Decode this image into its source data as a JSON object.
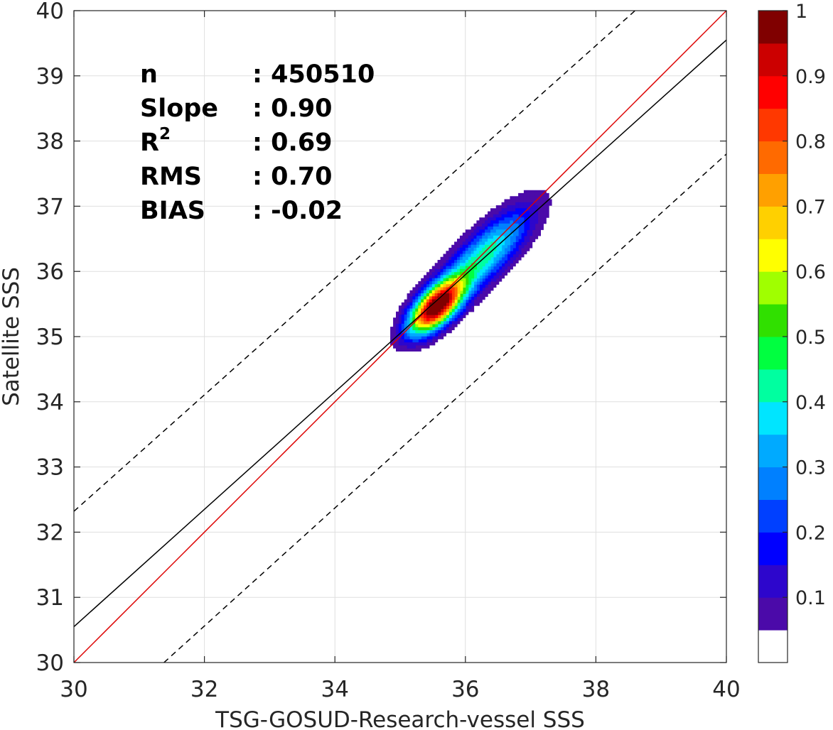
{
  "chart_data": {
    "type": "heatmap",
    "subtype": "density contour scatter (filled contours)",
    "xlabel": "TSG-GOSUD-Research-vessel SSS",
    "ylabel": "Satellite SSS",
    "xlim": [
      30,
      40
    ],
    "ylim": [
      30,
      40
    ],
    "xticks": [
      "30",
      "32",
      "34",
      "36",
      "38",
      "40"
    ],
    "yticks": [
      "30",
      "31",
      "32",
      "33",
      "34",
      "35",
      "36",
      "37",
      "38",
      "39",
      "40"
    ],
    "grid": true,
    "stats": [
      {
        "label": "n",
        "value": ": 450510"
      },
      {
        "label": "Slope",
        "value": ": 0.90"
      },
      {
        "label": "R",
        "superscript": "2",
        "value": ": 0.69"
      },
      {
        "label": "RMS",
        "value": ": 0.70"
      },
      {
        "label": "BIAS",
        "value": ": -0.02"
      }
    ],
    "lines": [
      {
        "kind": "one-to-one",
        "color": "#dd0000",
        "style": "solid",
        "points": [
          [
            30,
            30
          ],
          [
            40,
            40
          ]
        ]
      },
      {
        "kind": "regression",
        "color": "#000000",
        "style": "solid",
        "points": [
          [
            30,
            30.55
          ],
          [
            40,
            39.55
          ]
        ]
      },
      {
        "kind": "upper-bound",
        "color": "#000000",
        "style": "dashed",
        "points": [
          [
            30,
            32.32
          ],
          [
            38.6,
            40
          ]
        ]
      },
      {
        "kind": "lower-bound",
        "color": "#000000",
        "style": "dashed",
        "points": [
          [
            31.38,
            30
          ],
          [
            40,
            37.8
          ]
        ]
      }
    ],
    "density_peak": {
      "x": 35.55,
      "y": 35.45
    },
    "density_levels": [
      0.05,
      0.1,
      0.15,
      0.2,
      0.25,
      0.3,
      0.35,
      0.4,
      0.45,
      0.5,
      0.55,
      0.6,
      0.65,
      0.7,
      0.75,
      0.8,
      0.85,
      0.9,
      0.95
    ],
    "colorbar": {
      "range": [
        0,
        1
      ],
      "ticks": [
        "0.1",
        "0.2",
        "0.3",
        "0.4",
        "0.5",
        "0.6",
        "0.7",
        "0.8",
        "0.9",
        "1"
      ],
      "colors": [
        "#ffffff",
        "#4b0aa9",
        "#2d06cc",
        "#0000ff",
        "#0040ff",
        "#0080ff",
        "#00aaff",
        "#00e5ff",
        "#00ffa0",
        "#00ff40",
        "#30e000",
        "#a0ff00",
        "#ffff00",
        "#ffd000",
        "#ffa000",
        "#ff6a00",
        "#ff3800",
        "#ff0000",
        "#cc0000",
        "#800000"
      ]
    }
  }
}
